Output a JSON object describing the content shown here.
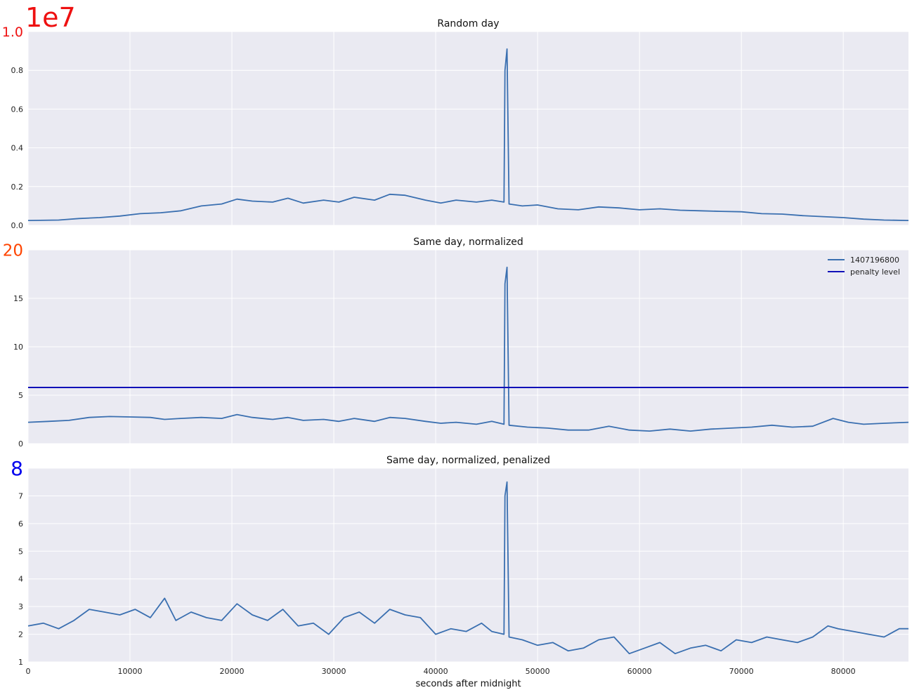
{
  "colors": {
    "panel_bg": "#eaeaf2",
    "grid": "#ffffff",
    "series_line": "#3a6fb0",
    "penalty_line": "#1010b8",
    "offset_red": "#ee1111",
    "top_tick_red": "#ee1111",
    "top_tick_orange": "#ff4400",
    "top_tick_blue": "#0000ee"
  },
  "xlabel": "seconds after midnight",
  "x_ticks": [
    "0",
    "10000",
    "20000",
    "30000",
    "40000",
    "50000",
    "60000",
    "70000",
    "80000"
  ],
  "chart_data": [
    {
      "type": "line",
      "title": "Random day",
      "offset_text": "1e7",
      "xlim": [
        0,
        86400
      ],
      "ylim": [
        0,
        1.0
      ],
      "y_tick_labels": [
        "0.0",
        "0.2",
        "0.4",
        "0.6",
        "0.8",
        "1.0"
      ],
      "grid": true,
      "series": [
        {
          "values_xy": [
            [
              0,
              0.025
            ],
            [
              3000,
              0.027
            ],
            [
              5000,
              0.035
            ],
            [
              7000,
              0.04
            ],
            [
              9000,
              0.048
            ],
            [
              11000,
              0.06
            ],
            [
              13000,
              0.065
            ],
            [
              15000,
              0.075
            ],
            [
              17000,
              0.1
            ],
            [
              19000,
              0.11
            ],
            [
              20500,
              0.135
            ],
            [
              22000,
              0.125
            ],
            [
              24000,
              0.12
            ],
            [
              25500,
              0.14
            ],
            [
              27000,
              0.115
            ],
            [
              29000,
              0.13
            ],
            [
              30500,
              0.12
            ],
            [
              32000,
              0.145
            ],
            [
              34000,
              0.13
            ],
            [
              35500,
              0.16
            ],
            [
              37000,
              0.155
            ],
            [
              39000,
              0.13
            ],
            [
              40500,
              0.115
            ],
            [
              42000,
              0.13
            ],
            [
              44000,
              0.12
            ],
            [
              45500,
              0.13
            ],
            [
              46700,
              0.12
            ],
            [
              46800,
              0.8
            ],
            [
              47000,
              0.91
            ],
            [
              47200,
              0.11
            ],
            [
              48500,
              0.1
            ],
            [
              50000,
              0.105
            ],
            [
              52000,
              0.085
            ],
            [
              54000,
              0.08
            ],
            [
              56000,
              0.095
            ],
            [
              58000,
              0.09
            ],
            [
              60000,
              0.08
            ],
            [
              62000,
              0.085
            ],
            [
              64000,
              0.078
            ],
            [
              66000,
              0.075
            ],
            [
              68000,
              0.072
            ],
            [
              70000,
              0.07
            ],
            [
              72000,
              0.06
            ],
            [
              74000,
              0.058
            ],
            [
              76000,
              0.05
            ],
            [
              78000,
              0.045
            ],
            [
              80000,
              0.04
            ],
            [
              82000,
              0.032
            ],
            [
              84000,
              0.027
            ],
            [
              86400,
              0.025
            ]
          ]
        }
      ]
    },
    {
      "type": "line",
      "title": "Same day, normalized",
      "xlim": [
        0,
        86400
      ],
      "ylim": [
        0,
        20
      ],
      "y_tick_labels": [
        "0",
        "5",
        "10",
        "15",
        "20"
      ],
      "grid": true,
      "legend_position": "top-right",
      "legend": [
        "1407196800",
        "penalty level"
      ],
      "penalty_level": 5.8,
      "series": [
        {
          "name": "1407196800",
          "values_xy": [
            [
              0,
              2.2
            ],
            [
              2000,
              2.3
            ],
            [
              4000,
              2.4
            ],
            [
              6000,
              2.7
            ],
            [
              8000,
              2.8
            ],
            [
              10000,
              2.75
            ],
            [
              12000,
              2.7
            ],
            [
              13400,
              2.5
            ],
            [
              15000,
              2.6
            ],
            [
              17000,
              2.7
            ],
            [
              19000,
              2.6
            ],
            [
              20500,
              3.0
            ],
            [
              22000,
              2.7
            ],
            [
              24000,
              2.5
            ],
            [
              25500,
              2.7
            ],
            [
              27000,
              2.4
            ],
            [
              29000,
              2.5
            ],
            [
              30500,
              2.3
            ],
            [
              32000,
              2.6
            ],
            [
              34000,
              2.3
            ],
            [
              35500,
              2.7
            ],
            [
              37000,
              2.6
            ],
            [
              39000,
              2.3
            ],
            [
              40500,
              2.1
            ],
            [
              42000,
              2.2
            ],
            [
              44000,
              2.0
            ],
            [
              45500,
              2.3
            ],
            [
              46700,
              2.0
            ],
            [
              46800,
              16.5
            ],
            [
              47000,
              18.2
            ],
            [
              47200,
              1.9
            ],
            [
              49000,
              1.7
            ],
            [
              51000,
              1.6
            ],
            [
              53000,
              1.4
            ],
            [
              55000,
              1.4
            ],
            [
              57000,
              1.8
            ],
            [
              59000,
              1.4
            ],
            [
              61000,
              1.3
            ],
            [
              63000,
              1.5
            ],
            [
              65000,
              1.3
            ],
            [
              67000,
              1.5
            ],
            [
              69000,
              1.6
            ],
            [
              71000,
              1.7
            ],
            [
              73000,
              1.9
            ],
            [
              75000,
              1.7
            ],
            [
              77000,
              1.8
            ],
            [
              79000,
              2.6
            ],
            [
              80500,
              2.2
            ],
            [
              82000,
              2.0
            ],
            [
              84000,
              2.1
            ],
            [
              86400,
              2.2
            ]
          ]
        },
        {
          "name": "penalty level",
          "values_xy": [
            [
              0,
              5.8
            ],
            [
              86400,
              5.8
            ]
          ]
        }
      ]
    },
    {
      "type": "line",
      "title": "Same day, normalized, penalized",
      "xlim": [
        0,
        86400
      ],
      "ylim": [
        1,
        8
      ],
      "y_tick_labels": [
        "1",
        "2",
        "3",
        "4",
        "5",
        "6",
        "7",
        "8"
      ],
      "grid": true,
      "series": [
        {
          "values_xy": [
            [
              0,
              2.3
            ],
            [
              1500,
              2.4
            ],
            [
              3000,
              2.2
            ],
            [
              4500,
              2.5
            ],
            [
              6000,
              2.9
            ],
            [
              7500,
              2.8
            ],
            [
              9000,
              2.7
            ],
            [
              10500,
              2.9
            ],
            [
              12000,
              2.6
            ],
            [
              13400,
              3.3
            ],
            [
              14500,
              2.5
            ],
            [
              16000,
              2.8
            ],
            [
              17500,
              2.6
            ],
            [
              19000,
              2.5
            ],
            [
              20500,
              3.1
            ],
            [
              22000,
              2.7
            ],
            [
              23500,
              2.5
            ],
            [
              25000,
              2.9
            ],
            [
              26500,
              2.3
            ],
            [
              28000,
              2.4
            ],
            [
              29500,
              2.0
            ],
            [
              31000,
              2.6
            ],
            [
              32500,
              2.8
            ],
            [
              34000,
              2.4
            ],
            [
              35500,
              2.9
            ],
            [
              37000,
              2.7
            ],
            [
              38500,
              2.6
            ],
            [
              40000,
              2.0
            ],
            [
              41500,
              2.2
            ],
            [
              43000,
              2.1
            ],
            [
              44500,
              2.4
            ],
            [
              45500,
              2.1
            ],
            [
              46700,
              2.0
            ],
            [
              46800,
              7.0
            ],
            [
              47000,
              7.5
            ],
            [
              47200,
              1.9
            ],
            [
              48500,
              1.8
            ],
            [
              50000,
              1.6
            ],
            [
              51500,
              1.7
            ],
            [
              53000,
              1.4
            ],
            [
              54500,
              1.5
            ],
            [
              56000,
              1.8
            ],
            [
              57500,
              1.9
            ],
            [
              59000,
              1.3
            ],
            [
              60500,
              1.5
            ],
            [
              62000,
              1.7
            ],
            [
              63500,
              1.3
            ],
            [
              65000,
              1.5
            ],
            [
              66500,
              1.6
            ],
            [
              68000,
              1.4
            ],
            [
              69500,
              1.8
            ],
            [
              71000,
              1.7
            ],
            [
              72500,
              1.9
            ],
            [
              74000,
              1.8
            ],
            [
              75500,
              1.7
            ],
            [
              77000,
              1.9
            ],
            [
              78500,
              2.3
            ],
            [
              79500,
              2.2
            ],
            [
              81000,
              2.1
            ],
            [
              82500,
              2.0
            ],
            [
              84000,
              1.9
            ],
            [
              85500,
              2.2
            ],
            [
              86400,
              2.2
            ]
          ]
        }
      ]
    }
  ]
}
